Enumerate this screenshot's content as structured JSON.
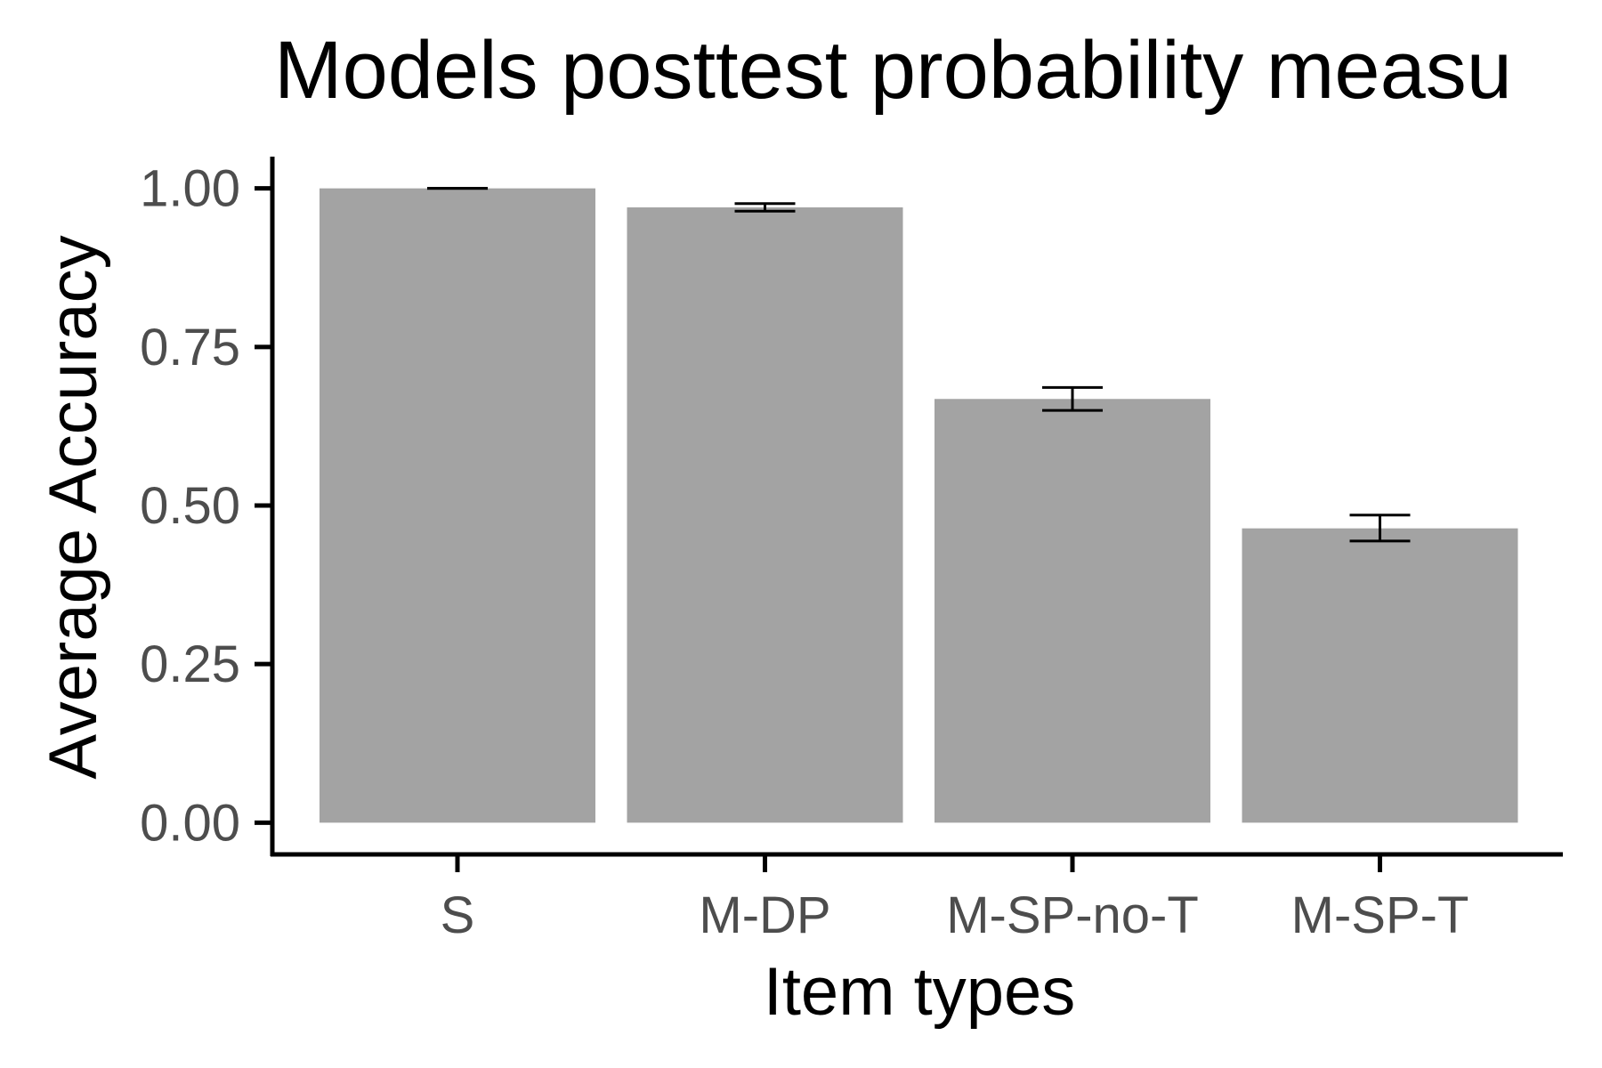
{
  "chart_data": {
    "type": "bar",
    "title": "Models posttest probability measu",
    "xlabel": "Item types",
    "ylabel": "Average Accuracy",
    "categories": [
      "S",
      "M-DP",
      "M-SP-no-T",
      "M-SP-T"
    ],
    "values": [
      1.0,
      0.97,
      0.668,
      0.464
    ],
    "error_low": [
      1.0,
      0.964,
      0.65,
      0.444
    ],
    "error_high": [
      1.0,
      0.976,
      0.686,
      0.485
    ],
    "ylim": [
      -0.05,
      1.05
    ],
    "yticks": [
      0,
      0.25,
      0.5,
      0.75,
      1.0
    ],
    "ytick_labels": [
      "0.00",
      "0.25",
      "0.50",
      "0.75",
      "1.00"
    ],
    "grid": false,
    "bar_color": "#a3a3a3",
    "axis_color": "#000000",
    "tick_label_color": "#4d4d4d",
    "error_bar_color": "#000000"
  }
}
